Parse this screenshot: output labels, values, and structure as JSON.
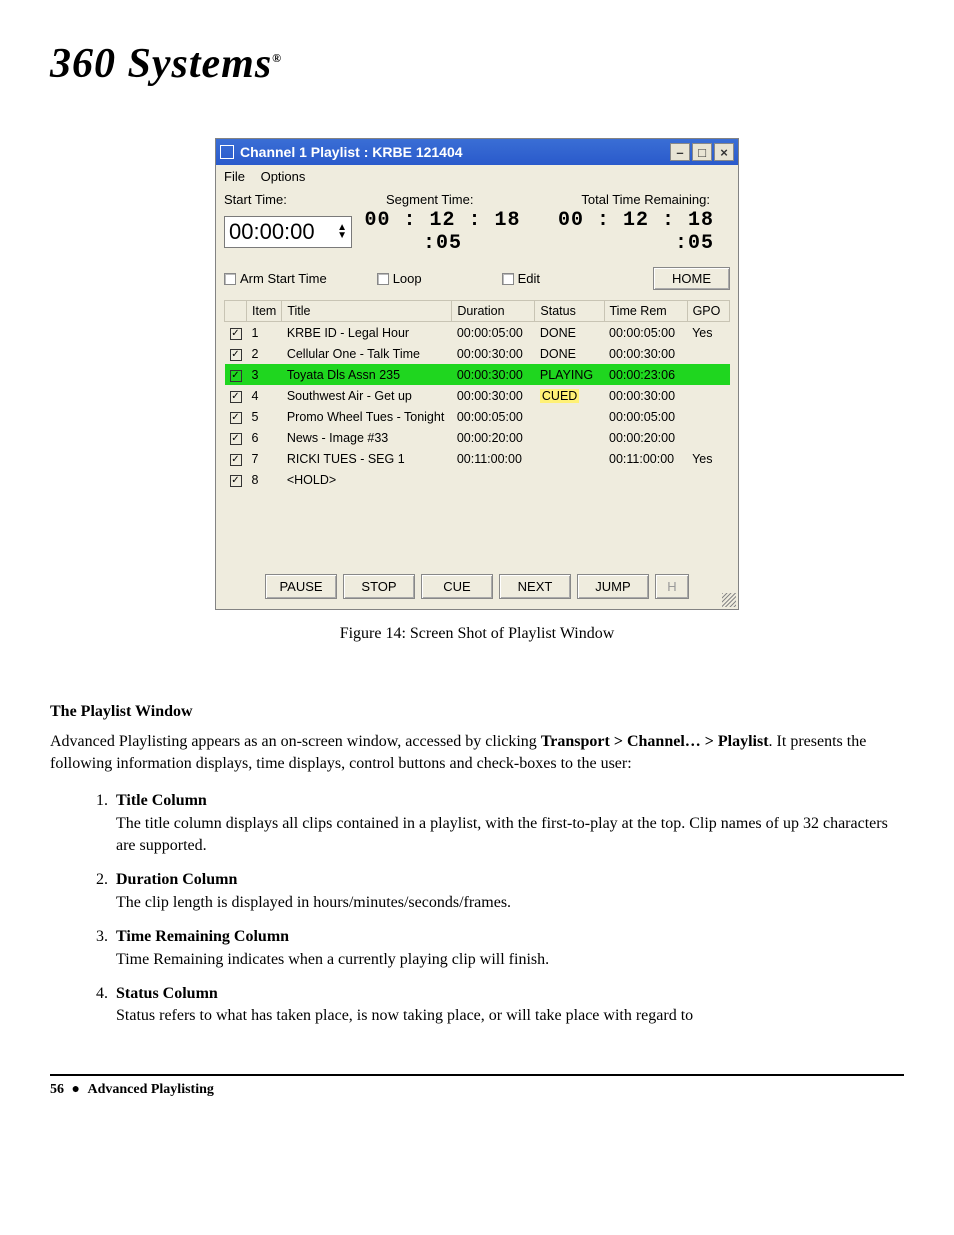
{
  "logo": "360 Systems",
  "window": {
    "title": "Channel 1 Playlist : KRBE 121404",
    "menu": {
      "file": "File",
      "options": "Options"
    },
    "labels": {
      "start_time": "Start Time:",
      "segment_time": "Segment Time:",
      "total_remaining": "Total Time Remaining:",
      "arm_start": "Arm Start Time",
      "loop": "Loop",
      "edit": "Edit",
      "home": "HOME"
    },
    "values": {
      "start_time": "00:00:00",
      "segment_time": "00 : 12 : 18 :05",
      "total_time": "00 : 12 : 18 :05"
    },
    "columns": {
      "check": "",
      "item": "Item",
      "title": "Title",
      "duration": "Duration",
      "status": "Status",
      "time_rem": "Time Rem",
      "gpo": "GPO"
    },
    "rows": [
      {
        "n": "1",
        "title": "KRBE ID - Legal Hour",
        "dur": "00:00:05:00",
        "status": "DONE",
        "rem": "00:00:05:00",
        "gpo": "Yes",
        "hl": ""
      },
      {
        "n": "2",
        "title": "Cellular One - Talk Time",
        "dur": "00:00:30:00",
        "status": "DONE",
        "rem": "00:00:30:00",
        "gpo": "",
        "hl": ""
      },
      {
        "n": "3",
        "title": "Toyata Dls Assn 235",
        "dur": "00:00:30:00",
        "status": "PLAYING",
        "rem": "00:00:23:06",
        "gpo": "",
        "hl": "playing"
      },
      {
        "n": "4",
        "title": "Southwest Air - Get up",
        "dur": "00:00:30:00",
        "status": "CUED",
        "rem": "00:00:30:00",
        "gpo": "",
        "hl": "cued"
      },
      {
        "n": "5",
        "title": "Promo Wheel Tues - Tonight",
        "dur": "00:00:05:00",
        "status": "",
        "rem": "00:00:05:00",
        "gpo": "",
        "hl": ""
      },
      {
        "n": "6",
        "title": "News - Image #33",
        "dur": "00:00:20:00",
        "status": "",
        "rem": "00:00:20:00",
        "gpo": "",
        "hl": ""
      },
      {
        "n": "7",
        "title": "RICKI TUES - SEG 1",
        "dur": "00:11:00:00",
        "status": "",
        "rem": "00:11:00:00",
        "gpo": "Yes",
        "hl": ""
      },
      {
        "n": "8",
        "title": "<HOLD>",
        "dur": "",
        "status": "",
        "rem": "",
        "gpo": "",
        "hl": ""
      }
    ],
    "buttons": {
      "pause": "PAUSE",
      "stop": "STOP",
      "cue": "CUE",
      "next": "NEXT",
      "jump": "JUMP",
      "h": "H"
    }
  },
  "caption": "Figure 14:  Screen Shot of Playlist Window",
  "doc": {
    "heading": "The Playlist Window",
    "para1a": "Advanced Playlisting appears as an on-screen window, accessed by clicking ",
    "para1b": "Transport > Channel… >  Playlist",
    "para1c": ".  It presents the following information displays, time displays, control buttons and check-boxes to the user:",
    "items": [
      {
        "t": "Title Column",
        "d": "The title column displays all clips contained in a playlist, with the first-to-play at the top. Clip names of up 32 characters are supported."
      },
      {
        "t": "Duration Column",
        "d": "The clip length is displayed in hours/minutes/seconds/frames."
      },
      {
        "t": "Time Remaining Column",
        "d": "Time Remaining indicates when a currently playing clip will finish."
      },
      {
        "t": "Status Column",
        "d": "Status refers to what has taken place, is now taking place, or will take place with regard to"
      }
    ]
  },
  "footer": {
    "page": "56",
    "section": "Advanced Playlisting"
  }
}
